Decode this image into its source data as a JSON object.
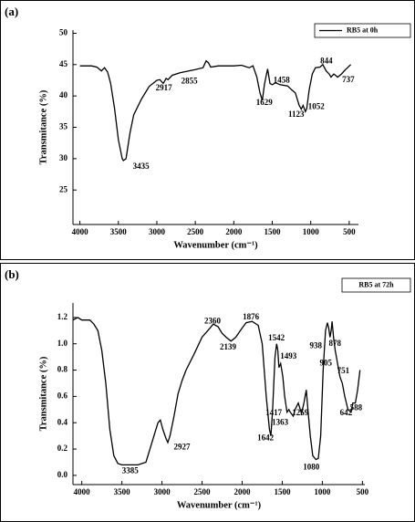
{
  "chart_data": [
    {
      "type": "line",
      "panel": "(a)",
      "xlabel": "Wavenumber (cm⁻¹)",
      "ylabel": "Transmitance (%)",
      "xlim": [
        4090,
        380
      ],
      "ylim": [
        19.5,
        50.5
      ],
      "xticks": [
        4000,
        3500,
        3000,
        2500,
        2000,
        1500,
        1000,
        500
      ],
      "yticks": [
        25,
        30,
        35,
        40,
        45,
        50
      ],
      "legend": "upper right",
      "series": [
        {
          "name": "RB5 at 0h",
          "color": "#000000",
          "x": [
            4000,
            3850,
            3780,
            3720,
            3680,
            3640,
            3600,
            3550,
            3500,
            3450,
            3435,
            3400,
            3350,
            3300,
            3200,
            3100,
            3000,
            2960,
            2917,
            2880,
            2855,
            2800,
            2700,
            2500,
            2400,
            2360,
            2330,
            2300,
            2200,
            2000,
            1900,
            1800,
            1750,
            1700,
            1660,
            1629,
            1600,
            1560,
            1530,
            1500,
            1458,
            1400,
            1300,
            1250,
            1200,
            1150,
            1123,
            1100,
            1070,
            1052,
            1020,
            980,
            940,
            880,
            844,
            800,
            760,
            737,
            700,
            650,
            600,
            550,
            480
          ],
          "values": [
            44.8,
            44.8,
            44.6,
            44.0,
            44.5,
            43.8,
            42,
            38,
            33,
            30,
            29.7,
            30,
            34,
            37,
            39.5,
            41.5,
            42.5,
            42.6,
            42.0,
            42.8,
            42.6,
            43.3,
            43.7,
            44.2,
            44.5,
            45.6,
            45.3,
            44.6,
            44.8,
            44.8,
            44.9,
            44.5,
            44.8,
            43,
            40.5,
            39.3,
            42,
            44.3,
            42,
            41.8,
            42.1,
            41.8,
            41.6,
            41,
            40.5,
            38.5,
            37.9,
            38.5,
            37.5,
            38,
            41,
            43.5,
            44.5,
            44.6,
            45,
            44,
            43.5,
            43,
            43.5,
            43,
            43.5,
            44.2,
            45
          ]
        }
      ],
      "annotations": [
        {
          "text": "3435",
          "x": 3205,
          "y": 28.7
        },
        {
          "text": "2917",
          "x": 2909,
          "y": 41.2
        },
        {
          "text": "2855",
          "x": 2577,
          "y": 42.3
        },
        {
          "text": "1629",
          "x": 1604,
          "y": 38.9
        },
        {
          "text": "1458",
          "x": 1378,
          "y": 42.4
        },
        {
          "text": "1123",
          "x": 1189,
          "y": 37.0
        },
        {
          "text": "1052",
          "x": 928,
          "y": 38.2
        },
        {
          "text": "844",
          "x": 797,
          "y": 45.5
        },
        {
          "text": "737",
          "x": 512,
          "y": 42.5
        }
      ]
    },
    {
      "type": "line",
      "panel": "(b)",
      "xlabel": "Wavenumber (cm⁻¹)",
      "ylabel": "Transmitance (%)",
      "xlim": [
        4110,
        470
      ],
      "ylim": [
        -0.07,
        1.31
      ],
      "xticks": [
        4000,
        3500,
        3000,
        2500,
        2000,
        1500,
        1000,
        500
      ],
      "yticks": [
        {
          "value": 0,
          "label": "0.0"
        },
        0.2,
        0.4,
        0.6,
        0.8,
        {
          "value": 1,
          "label": "1.0"
        },
        1.2
      ],
      "legend": "upper right",
      "series": [
        {
          "name": "RB5 at 72h",
          "color": "#000000",
          "x": [
            4110,
            4050,
            4000,
            3900,
            3850,
            3800,
            3750,
            3700,
            3650,
            3600,
            3550,
            3500,
            3385,
            3300,
            3200,
            3150,
            3100,
            3050,
            3020,
            2990,
            2950,
            2927,
            2900,
            2850,
            2800,
            2750,
            2700,
            2600,
            2500,
            2400,
            2360,
            2300,
            2250,
            2200,
            2139,
            2080,
            2000,
            1950,
            1876,
            1800,
            1750,
            1700,
            1660,
            1642,
            1620,
            1590,
            1570,
            1555,
            1542,
            1520,
            1493,
            1470,
            1440,
            1417,
            1400,
            1363,
            1340,
            1300,
            1259,
            1230,
            1200,
            1180,
            1150,
            1120,
            1080,
            1050,
            1020,
            990,
            960,
            938,
            920,
            905,
            890,
            878,
            860,
            840,
            810,
            780,
            751,
            720,
            680,
            642,
            620,
            588,
            560,
            530
          ],
          "values": [
            1.18,
            1.2,
            1.18,
            1.18,
            1.15,
            1.1,
            0.95,
            0.7,
            0.35,
            0.15,
            0.09,
            0.08,
            0.08,
            0.08,
            0.1,
            0.2,
            0.3,
            0.4,
            0.42,
            0.35,
            0.28,
            0.25,
            0.3,
            0.45,
            0.62,
            0.72,
            0.8,
            0.92,
            1.05,
            1.12,
            1.15,
            1.13,
            1.08,
            1.05,
            1.02,
            1.05,
            1.12,
            1.16,
            1.17,
            1.14,
            1.0,
            0.6,
            0.35,
            0.3,
            0.5,
            0.9,
            1.0,
            0.95,
            0.82,
            0.85,
            0.75,
            0.6,
            0.48,
            0.5,
            0.48,
            0.45,
            0.5,
            0.55,
            0.47,
            0.55,
            0.65,
            0.5,
            0.3,
            0.15,
            0.12,
            0.13,
            0.3,
            0.8,
            1.1,
            1.16,
            1.12,
            1.05,
            1.1,
            1.17,
            1.05,
            0.95,
            0.85,
            0.75,
            0.7,
            0.6,
            0.5,
            0.48,
            0.55,
            0.55,
            0.65,
            0.8
          ]
        }
      ],
      "annotations": [
        {
          "text": "2360",
          "x": 2370,
          "y": 1.17
        },
        {
          "text": "1876",
          "x": 1891,
          "y": 1.2
        },
        {
          "text": "2139",
          "x": 2176,
          "y": 0.97
        },
        {
          "text": "1542",
          "x": 1572,
          "y": 1.04
        },
        {
          "text": "1493",
          "x": 1423,
          "y": 0.9
        },
        {
          "text": "1417",
          "x": 1606,
          "y": 0.47
        },
        {
          "text": "1363",
          "x": 1526,
          "y": 0.4
        },
        {
          "text": "1259",
          "x": 1275,
          "y": 0.47
        },
        {
          "text": "1642",
          "x": 1708,
          "y": 0.28
        },
        {
          "text": "1080",
          "x": 1138,
          "y": 0.06
        },
        {
          "text": "938",
          "x": 1081,
          "y": 0.98
        },
        {
          "text": "905",
          "x": 956,
          "y": 0.85
        },
        {
          "text": "878",
          "x": 842,
          "y": 1.0
        },
        {
          "text": "751",
          "x": 739,
          "y": 0.79
        },
        {
          "text": "642",
          "x": 705,
          "y": 0.47
        },
        {
          "text": "588",
          "x": 580,
          "y": 0.51
        },
        {
          "text": "3385",
          "x": 3396,
          "y": 0.03
        },
        {
          "text": "2927",
          "x": 2750,
          "y": 0.21
        }
      ]
    }
  ]
}
